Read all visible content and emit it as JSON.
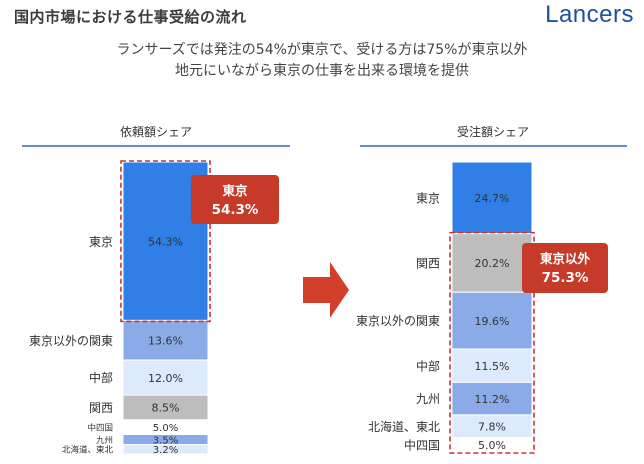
{
  "page": {
    "title": "国内市場における仕事受給の流れ",
    "brand": "Lancers",
    "subtitle_lines": [
      "ランサーズでは発注の54%が東京で、受ける方は75%が東京以外",
      "地元にいながら東京の仕事を出来る環境を提供"
    ]
  },
  "chart_data": [
    {
      "type": "bar",
      "stacked": true,
      "title": "依頼額シェア",
      "unit": "%",
      "categories": [
        "東京",
        "東京以外の関東",
        "中部",
        "関西",
        "中四国",
        "九州",
        "北海道、東北"
      ],
      "values": [
        54.3,
        13.6,
        12.0,
        8.5,
        5.0,
        3.5,
        3.2
      ],
      "value_labels": [
        "54.3%",
        "13.6%",
        "12.0%",
        "8.5%",
        "5.0%",
        "3.5%",
        "3.2%"
      ],
      "colors": [
        "#2f7fe6",
        "#8aaae8",
        "#dceafb",
        "#bdbdbd",
        "#ffffff",
        "#8aaae8",
        "#dceafb"
      ],
      "callout": {
        "title": "東京",
        "value": "54.3%"
      },
      "highlight": [
        "東京"
      ]
    },
    {
      "type": "bar",
      "stacked": true,
      "title": "受注額シェア",
      "unit": "%",
      "categories": [
        "東京",
        "関西",
        "東京以外の関東",
        "中部",
        "九州",
        "北海道、東北",
        "中四国"
      ],
      "values": [
        24.7,
        20.2,
        19.6,
        11.5,
        11.2,
        7.8,
        5.0
      ],
      "value_labels": [
        "24.7%",
        "20.2%",
        "19.6%",
        "11.5%",
        "11.2%",
        "7.8%",
        "5.0%"
      ],
      "colors": [
        "#2f7fe6",
        "#bdbdbd",
        "#8aaae8",
        "#dceafb",
        "#8aaae8",
        "#dceafb",
        "#ffffff"
      ],
      "callout": {
        "title": "東京以外",
        "value": "75.3%"
      },
      "highlight": [
        "関西",
        "東京以外の関東",
        "中部",
        "九州",
        "北海道、東北",
        "中四国"
      ]
    }
  ],
  "colors": {
    "accent_red": "#c63a2a",
    "highlight_dash": "#cc3333",
    "header_rule": "#2f66c8",
    "arrow": "#d2402b",
    "brand": "#1f4ea3"
  }
}
